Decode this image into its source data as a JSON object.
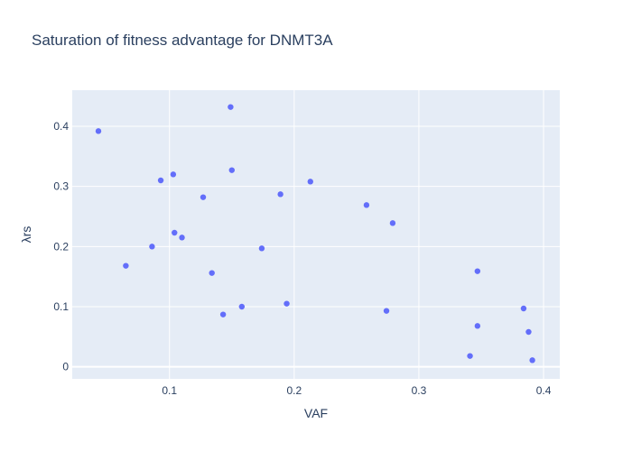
{
  "chart_data": {
    "type": "scatter",
    "title": "Saturation of fitness advantage for DNMT3A",
    "xlabel": "VAF",
    "ylabel": "λrs",
    "xlim": [
      0.022,
      0.413
    ],
    "ylim": [
      -0.02,
      0.46
    ],
    "xticks": [
      0.1,
      0.2,
      0.3,
      0.4
    ],
    "yticks": [
      0,
      0.1,
      0.2,
      0.3,
      0.4
    ],
    "xtick_labels": [
      "0.1",
      "0.2",
      "0.3",
      "0.4"
    ],
    "ytick_labels": [
      "0",
      "0.1",
      "0.2",
      "0.3",
      "0.4"
    ],
    "grid": true,
    "legend": "none",
    "colors": {
      "marker": "#636efa",
      "plot_bg": "#e5ecf6",
      "grid": "#ffffff",
      "text": "#2a3f5f"
    },
    "points": [
      {
        "x": 0.043,
        "y": 0.392
      },
      {
        "x": 0.065,
        "y": 0.168
      },
      {
        "x": 0.086,
        "y": 0.2
      },
      {
        "x": 0.093,
        "y": 0.31
      },
      {
        "x": 0.103,
        "y": 0.32
      },
      {
        "x": 0.104,
        "y": 0.223
      },
      {
        "x": 0.11,
        "y": 0.215
      },
      {
        "x": 0.127,
        "y": 0.282
      },
      {
        "x": 0.134,
        "y": 0.156
      },
      {
        "x": 0.143,
        "y": 0.087
      },
      {
        "x": 0.149,
        "y": 0.432
      },
      {
        "x": 0.15,
        "y": 0.327
      },
      {
        "x": 0.158,
        "y": 0.1
      },
      {
        "x": 0.174,
        "y": 0.197
      },
      {
        "x": 0.189,
        "y": 0.287
      },
      {
        "x": 0.194,
        "y": 0.105
      },
      {
        "x": 0.213,
        "y": 0.308
      },
      {
        "x": 0.258,
        "y": 0.269
      },
      {
        "x": 0.274,
        "y": 0.093
      },
      {
        "x": 0.279,
        "y": 0.239
      },
      {
        "x": 0.341,
        "y": 0.018
      },
      {
        "x": 0.347,
        "y": 0.159
      },
      {
        "x": 0.347,
        "y": 0.068
      },
      {
        "x": 0.384,
        "y": 0.097
      },
      {
        "x": 0.388,
        "y": 0.058
      },
      {
        "x": 0.391,
        "y": 0.011
      }
    ]
  }
}
